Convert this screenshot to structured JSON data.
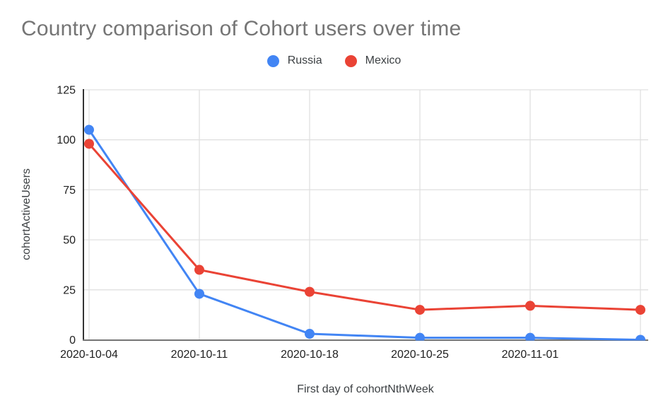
{
  "chart_data": {
    "type": "line",
    "title": "Country comparison of Cohort users over time",
    "x_categories": [
      "2020-10-04",
      "2020-10-11",
      "2020-10-18",
      "2020-10-25",
      "2020-11-01",
      ""
    ],
    "series": [
      {
        "name": "Russia",
        "color": "#4285F4",
        "values": [
          105,
          23,
          3,
          1,
          1,
          0
        ]
      },
      {
        "name": "Mexico",
        "color": "#EA4335",
        "values": [
          98,
          35,
          24,
          15,
          17,
          15
        ]
      }
    ],
    "xlabel": "First day of cohortNthWeek",
    "ylabel": "cohortActiveUsers",
    "ylim": [
      0,
      125
    ],
    "yticks": [
      0,
      25,
      50,
      75,
      100,
      125
    ],
    "grid": true,
    "legend_position": "top-center",
    "marker": "circle"
  },
  "styles": {
    "background": "#ffffff",
    "title_color": "#757575",
    "tick_label_color": "#212121",
    "axis_label_color": "#3c4043",
    "grid_color": "#e0e0e0",
    "y_axis_color": "#333333",
    "x_axis_color": "#757575"
  }
}
